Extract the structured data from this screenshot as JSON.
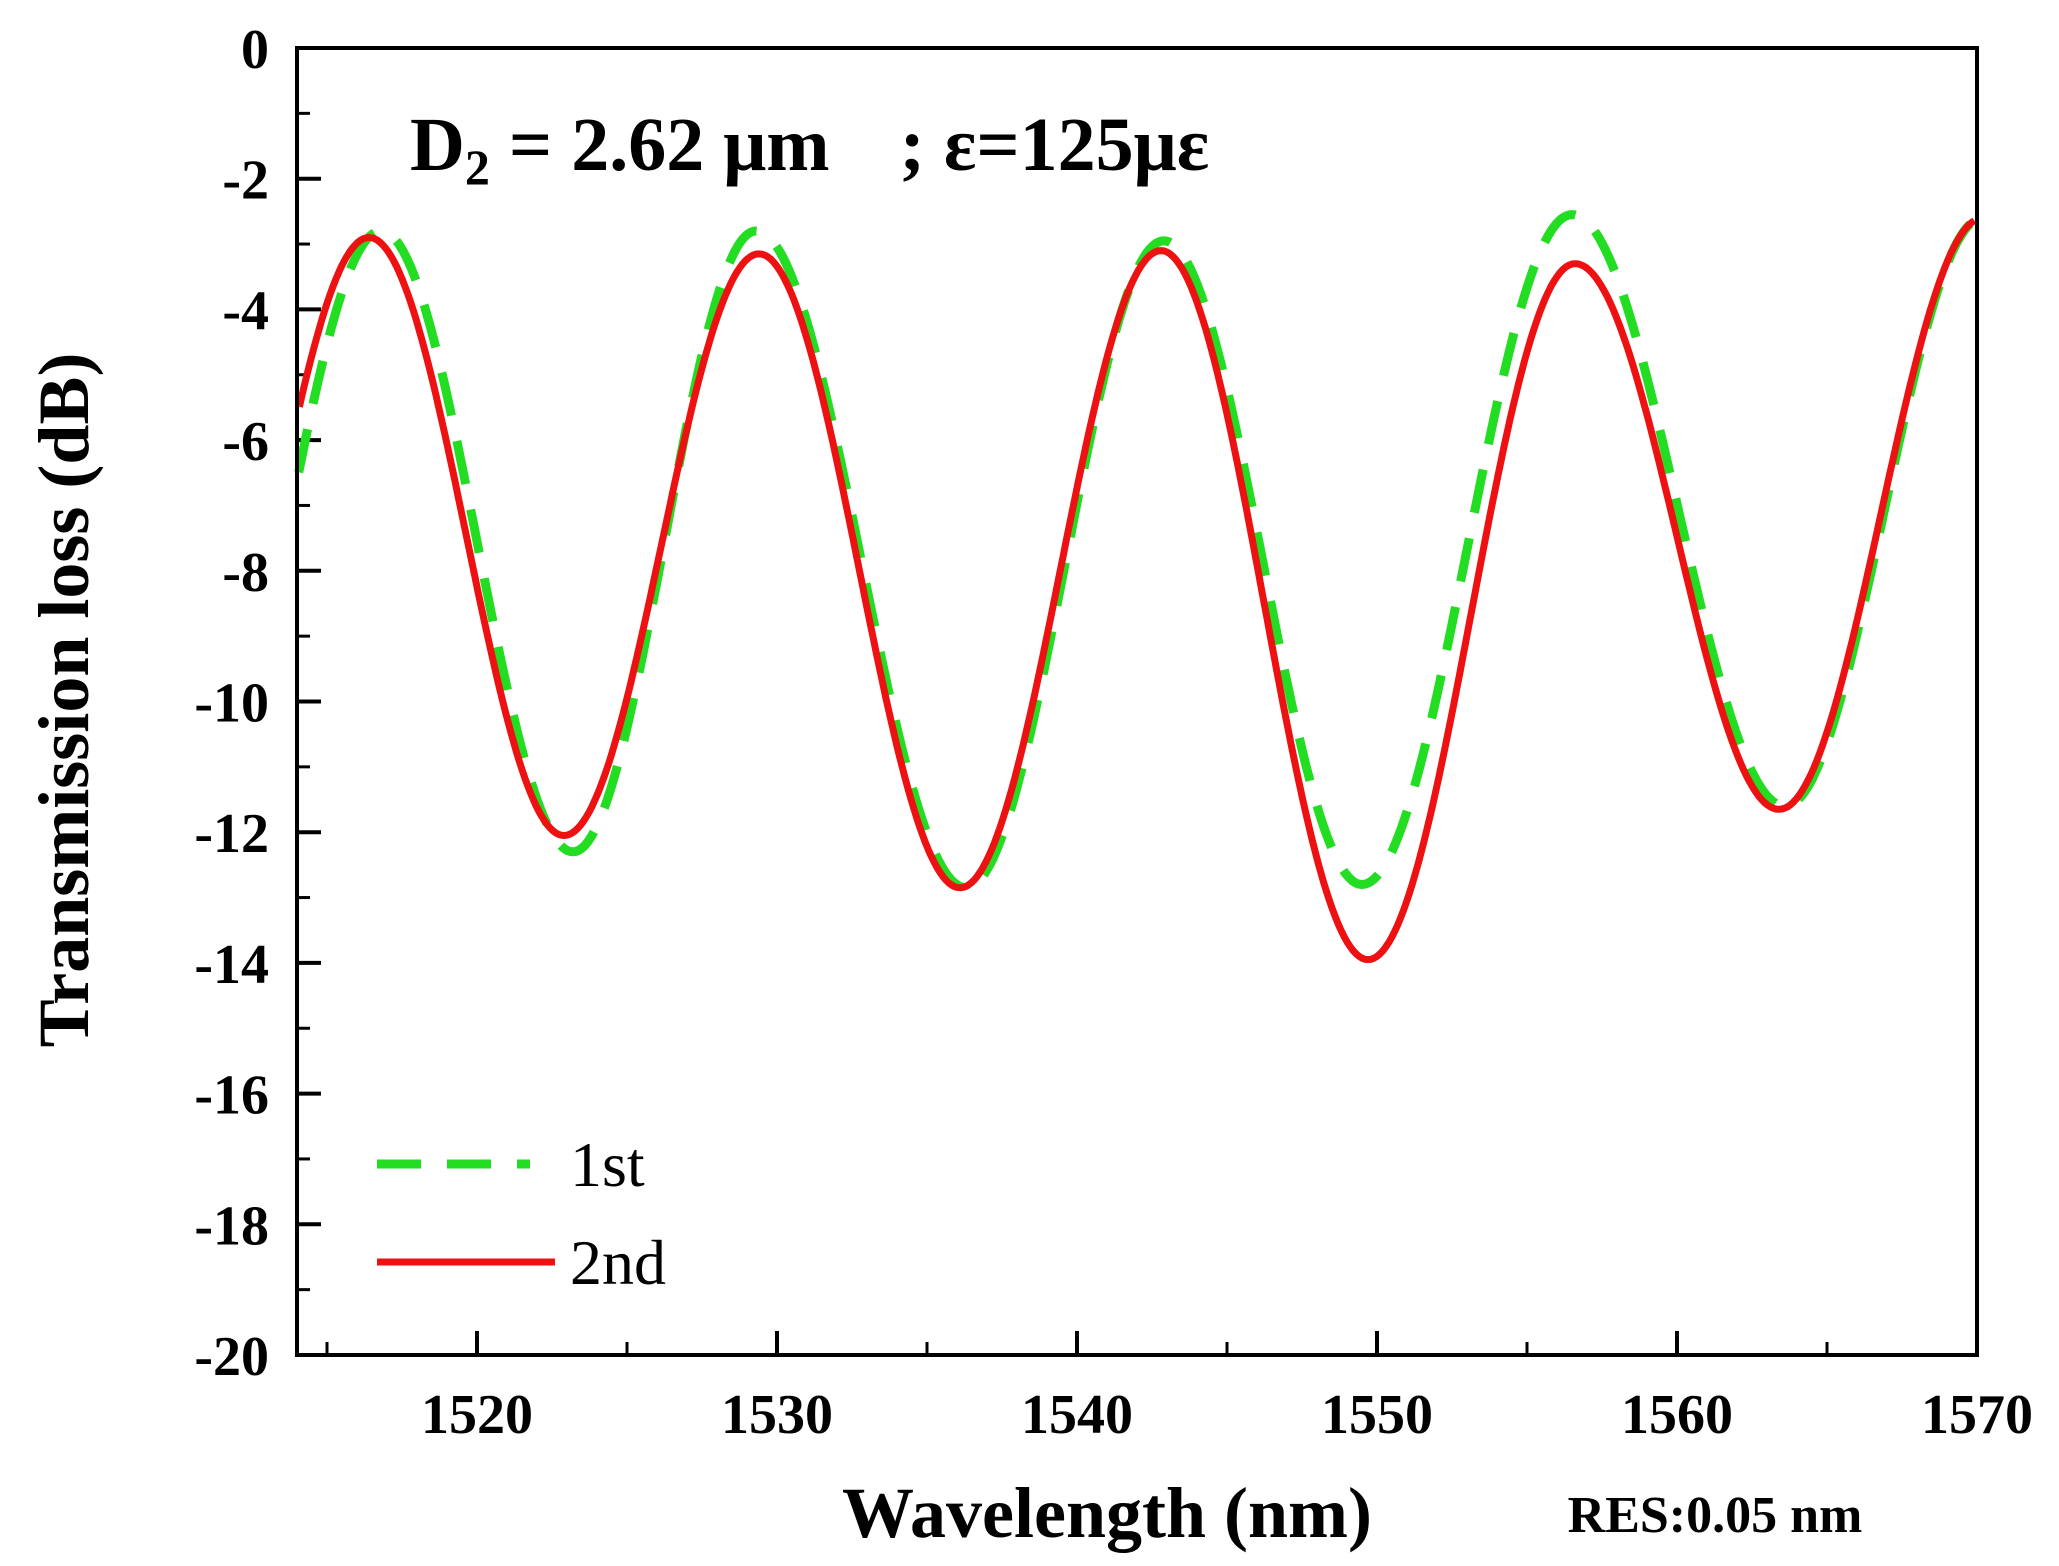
{
  "chart_data": {
    "type": "line",
    "xlabel": "Wavelength (nm)",
    "ylabel": "Transmission loss (dB)",
    "xlim": [
      1514,
      1570
    ],
    "ylim": [
      -20,
      0
    ],
    "xticks": [
      1520,
      1530,
      1540,
      1550,
      1560,
      1570
    ],
    "yticks": [
      0,
      -2,
      -4,
      -6,
      -8,
      -10,
      -12,
      -14,
      -16,
      -18,
      -20
    ],
    "annotation": {
      "prefix": "D",
      "subscript": "2",
      "middle": " = 2.62 μm",
      "suffix": "; ε=125με"
    },
    "resolution_note": "RES:0.05 nm",
    "legend_position": "bottom-left",
    "series": [
      {
        "name": "1st",
        "style": "dashed",
        "color": "#22dd22",
        "peaks": [
          {
            "x": 1516.8,
            "y": -2.8
          },
          {
            "x": 1529.3,
            "y": -2.8
          },
          {
            "x": 1542.9,
            "y": -2.95
          },
          {
            "x": 1556.5,
            "y": -2.55
          },
          {
            "x": 1570.2,
            "y": -2.6
          }
        ],
        "dips": [
          {
            "x": 1523.2,
            "y": -12.3
          },
          {
            "x": 1536.3,
            "y": -12.85
          },
          {
            "x": 1549.5,
            "y": -12.8
          },
          {
            "x": 1563.6,
            "y": -11.6
          }
        ]
      },
      {
        "name": "2nd",
        "style": "solid",
        "color": "#ee1111",
        "peaks": [
          {
            "x": 1516.4,
            "y": -2.9
          },
          {
            "x": 1529.4,
            "y": -3.15
          },
          {
            "x": 1542.8,
            "y": -3.1
          },
          {
            "x": 1556.6,
            "y": -3.3
          },
          {
            "x": 1570.2,
            "y": -2.6
          }
        ],
        "dips": [
          {
            "x": 1522.9,
            "y": -12.05
          },
          {
            "x": 1536.1,
            "y": -12.85
          },
          {
            "x": 1549.7,
            "y": -13.95
          },
          {
            "x": 1563.4,
            "y": -11.65
          }
        ]
      }
    ]
  }
}
